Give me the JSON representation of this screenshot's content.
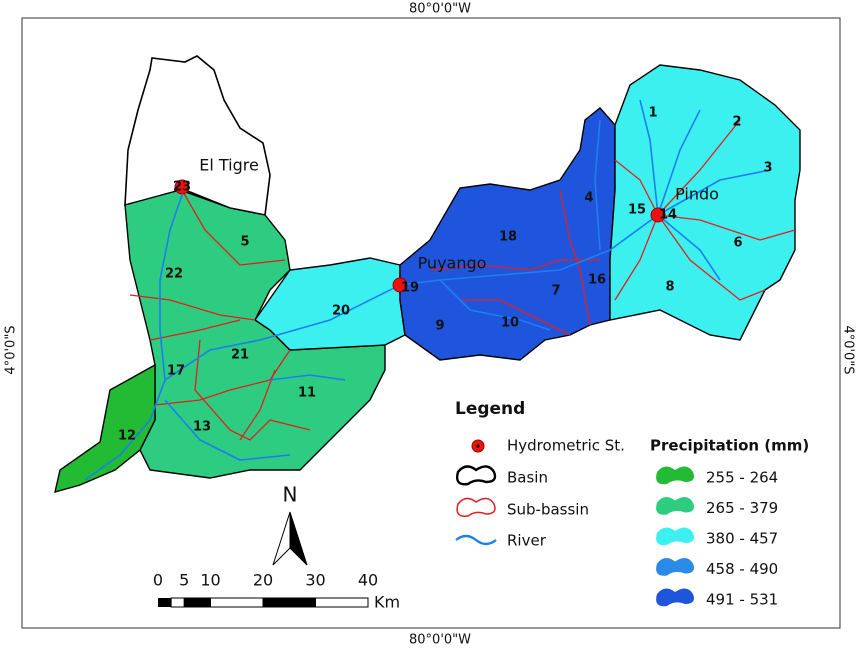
{
  "map": {
    "graticule": {
      "longitude": "80°0'0\"W",
      "latitude": "4°0'0\"S"
    },
    "subbasins": [
      "1",
      "2",
      "3",
      "4",
      "5",
      "6",
      "7",
      "8",
      "9",
      "10",
      "11",
      "12",
      "13",
      "15",
      "16",
      "17",
      "18",
      "20",
      "21",
      "22"
    ],
    "stations": [
      {
        "name": "El Tigre",
        "label": "23"
      },
      {
        "name": "Pindo",
        "label": "14"
      },
      {
        "name": "Puyango",
        "label": "19"
      }
    ],
    "legend": {
      "title": "Legend",
      "items": [
        "Hydrometric St.",
        "Basin",
        "Sub-bassin",
        "River"
      ],
      "precipitation": {
        "title": "Precipitation (mm)",
        "classes": [
          {
            "label": "255 - 264",
            "color": "#22bb33"
          },
          {
            "label": "265 - 379",
            "color": "#2ecc80"
          },
          {
            "label": "380 - 457",
            "color": "#3cf0f0"
          },
          {
            "label": "458 - 490",
            "color": "#2a8ae8"
          },
          {
            "label": "491 - 531",
            "color": "#1f55dc"
          }
        ]
      }
    },
    "north": "N",
    "scale_bar": {
      "ticks": [
        0,
        5,
        10,
        20,
        30,
        40
      ],
      "unit": "Km"
    }
  }
}
